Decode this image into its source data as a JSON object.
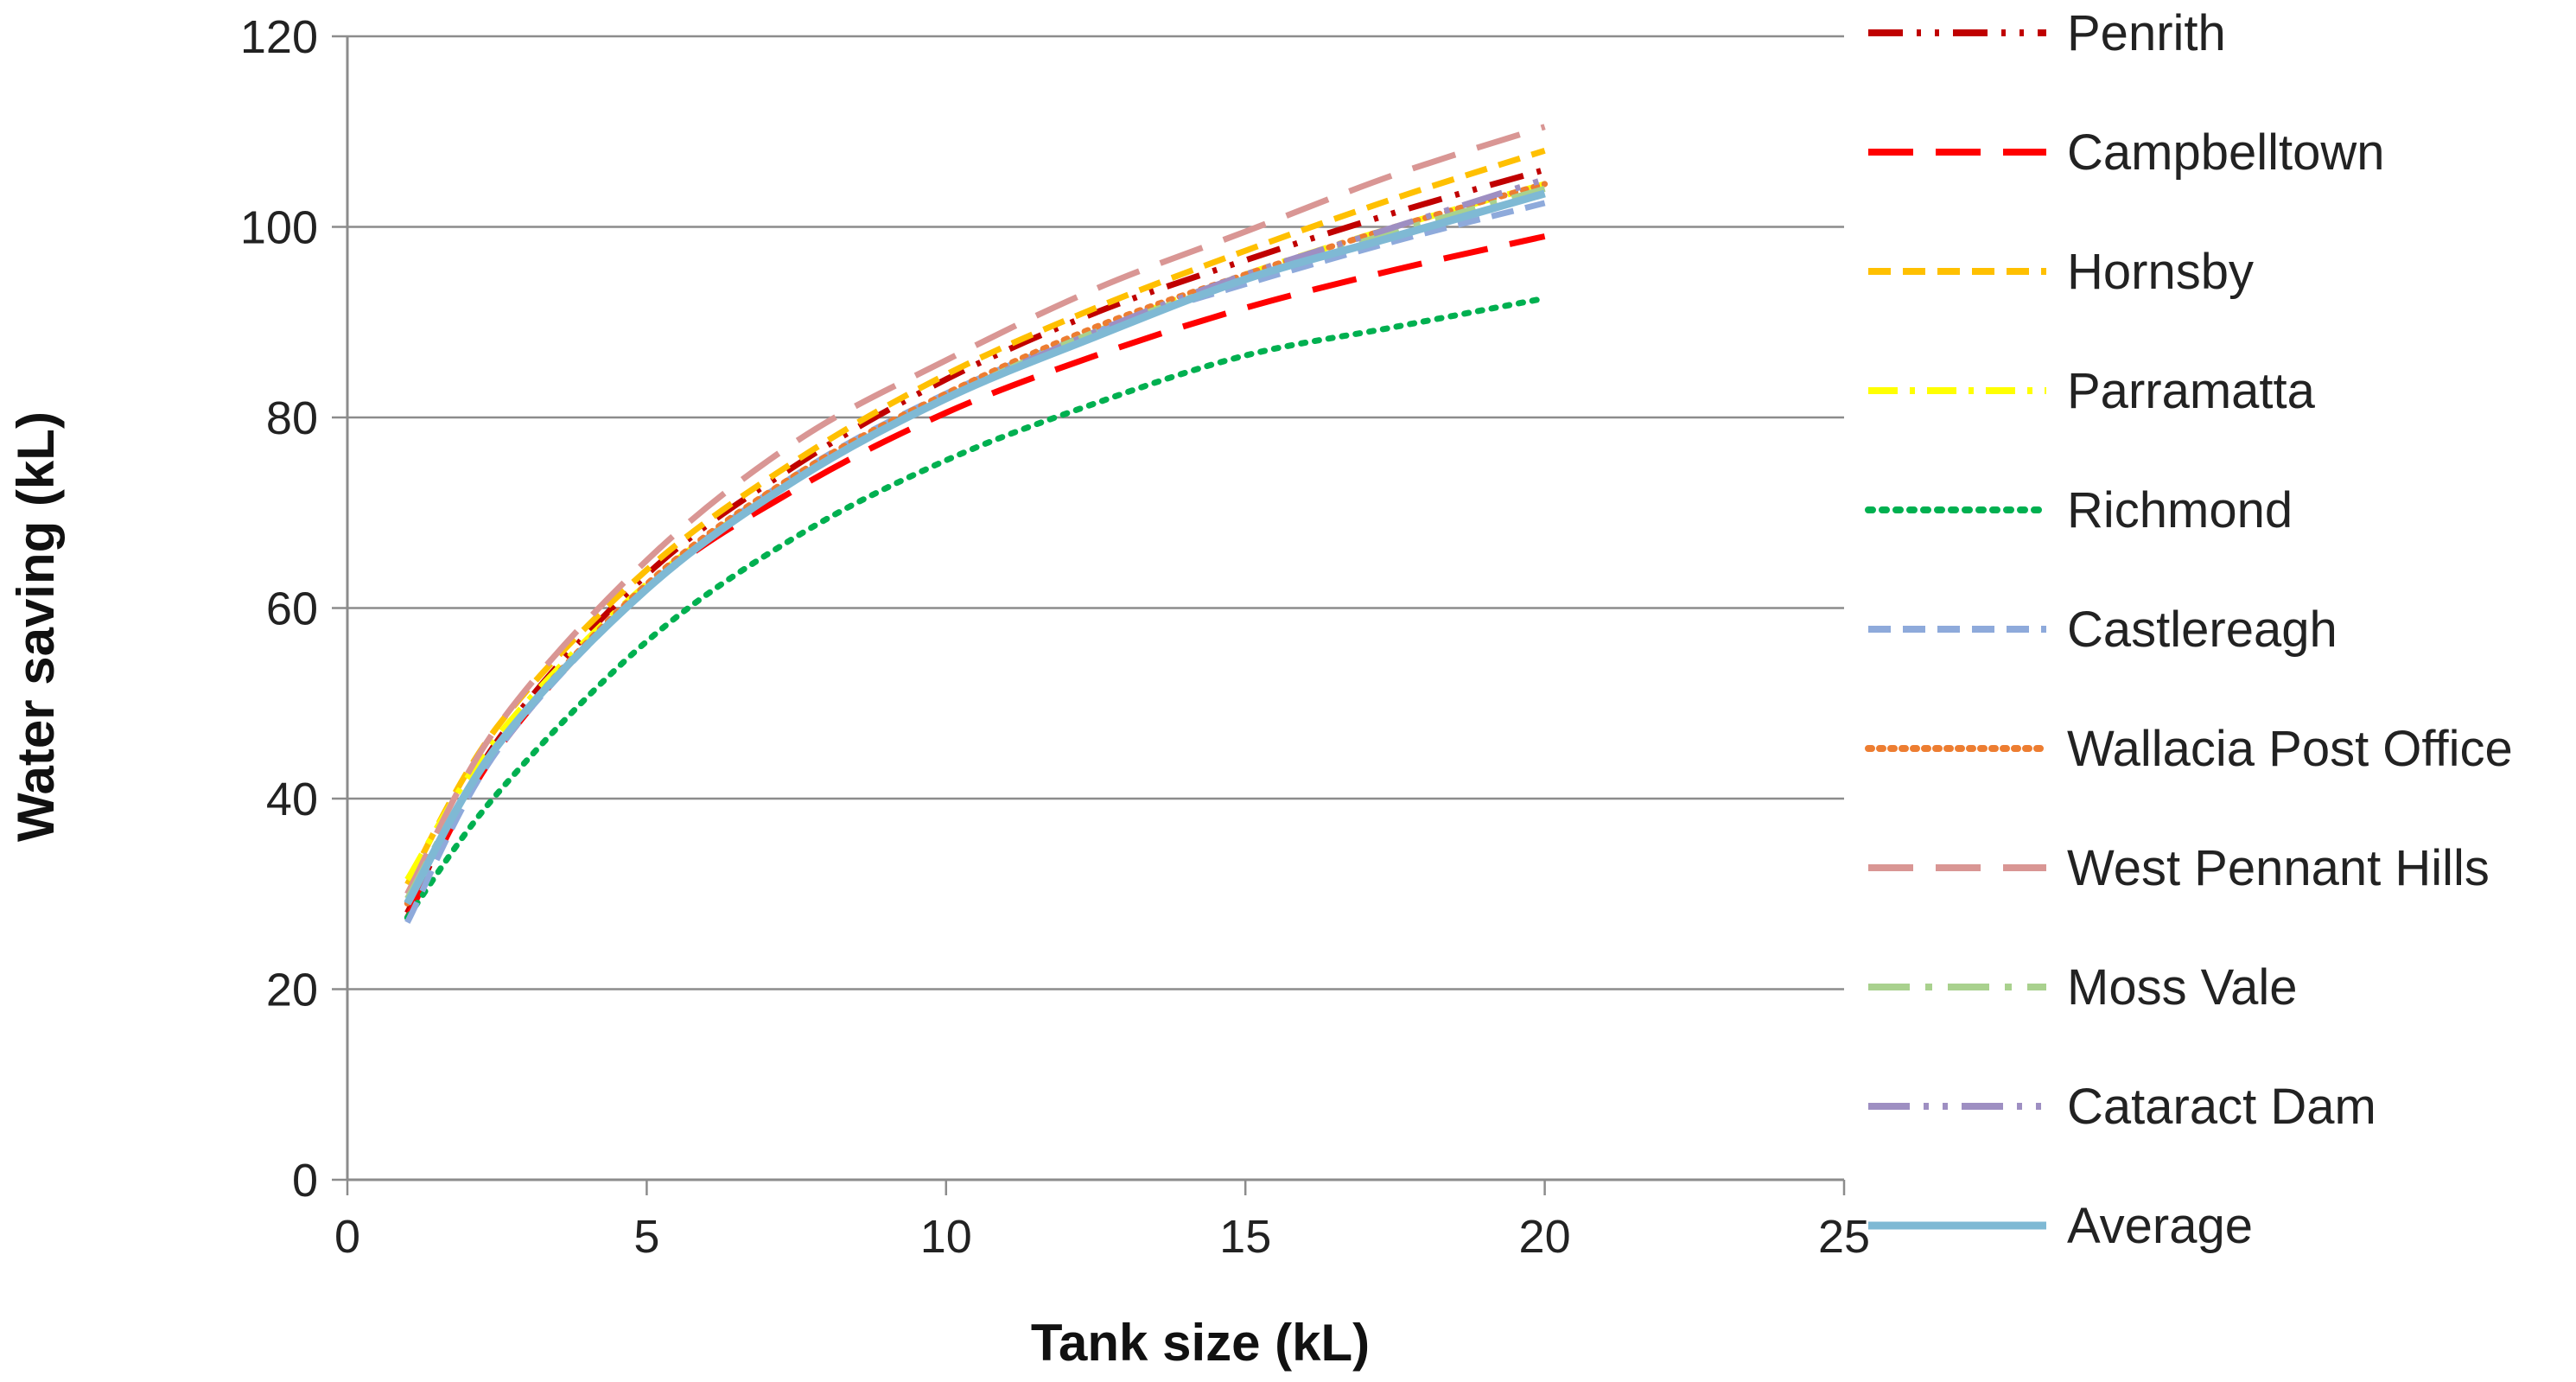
{
  "chart_data": {
    "type": "line",
    "title": "",
    "xlabel": "Tank size (kL)",
    "ylabel": "Water saving (kL)",
    "xlim": [
      0,
      25
    ],
    "ylim": [
      0,
      120
    ],
    "x_ticks": [
      "0",
      "5",
      "10",
      "15",
      "20",
      "25"
    ],
    "y_ticks": [
      "0",
      "20",
      "40",
      "60",
      "80",
      "100",
      "120"
    ],
    "grid": "horizontal",
    "legend_position": "right",
    "x": [
      1,
      2.5,
      5,
      7.5,
      10,
      12.5,
      15,
      17.5,
      20
    ],
    "series": [
      {
        "name": "Penrith",
        "color": "#c00000",
        "dash": "dash-dot-dot",
        "values": [
          28,
          46,
          63.5,
          75,
          84,
          91,
          96.5,
          101.5,
          106
        ]
      },
      {
        "name": "Campbelltown",
        "color": "#ff0000",
        "dash": "long-dash",
        "values": [
          27.5,
          45,
          62,
          72.5,
          80.5,
          86.5,
          91.5,
          95.5,
          99
        ]
      },
      {
        "name": "Hornsby",
        "color": "#ffc000",
        "dash": "dash",
        "values": [
          31,
          47.5,
          64,
          75.5,
          84.5,
          91.5,
          97.5,
          103,
          108
        ]
      },
      {
        "name": "Parramatta",
        "color": "#ffff00",
        "dash": "dash-dot",
        "values": [
          31.5,
          46.5,
          62.5,
          73.5,
          82,
          89,
          95,
          100,
          104.5
        ]
      },
      {
        "name": "Richmond",
        "color": "#00b050",
        "dash": "dot",
        "values": [
          27.5,
          40.5,
          56.5,
          67.5,
          75.5,
          81.5,
          86.5,
          89.5,
          92.5
        ]
      },
      {
        "name": "Castlereagh",
        "color": "#8eaadb",
        "dash": "dash",
        "values": [
          27,
          45,
          62,
          74,
          82.5,
          89,
          94,
          98.5,
          102.5
        ]
      },
      {
        "name": "Wallacia Post Office",
        "color": "#ed7d31",
        "dash": "round-dot",
        "values": [
          29,
          45.5,
          62.5,
          74,
          82.5,
          89.5,
          95,
          100,
          104.5
        ]
      },
      {
        "name": "West Pennant Hills",
        "color": "#d99694",
        "dash": "long-dash",
        "values": [
          30,
          47.5,
          65,
          77.5,
          86,
          93.5,
          99.5,
          105.5,
          110.5
        ]
      },
      {
        "name": "Moss Vale",
        "color": "#a9d18e",
        "dash": "long-dash-dot",
        "values": [
          29.5,
          45.5,
          62,
          73.5,
          82,
          89,
          94.5,
          99.5,
          104
        ]
      },
      {
        "name": "Cataract Dam",
        "color": "#9e8fc2",
        "dash": "long-dash-dot-dot",
        "values": [
          29,
          45.5,
          62,
          73.5,
          82,
          89,
          95,
          100,
          105
        ]
      },
      {
        "name": "Average",
        "color": "#7fb9d4",
        "dash": "solid",
        "values": [
          29,
          45.5,
          62,
          73.5,
          82,
          88.5,
          94.5,
          99,
          103.5
        ]
      }
    ]
  }
}
